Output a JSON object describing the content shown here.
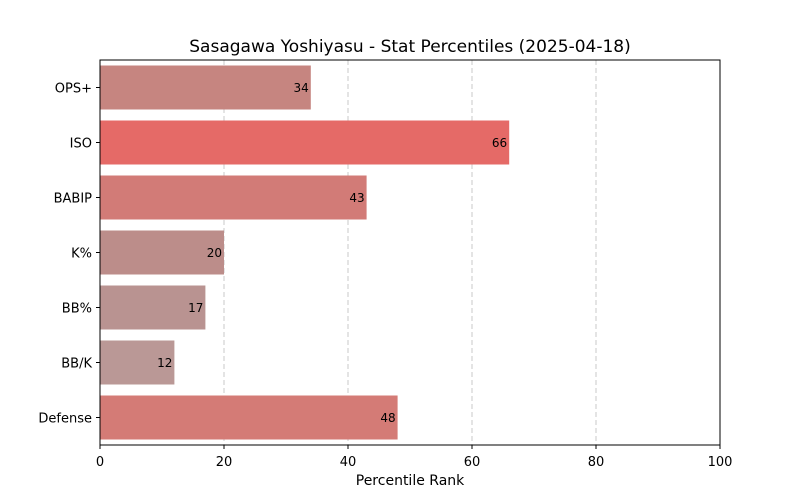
{
  "chart_data": {
    "type": "bar",
    "orientation": "horizontal",
    "title": "Sasagawa Yoshiyasu - Stat Percentiles (2025-04-18)",
    "xlabel": "Percentile Rank",
    "ylabel": "",
    "xlim": [
      0,
      100
    ],
    "xticks": [
      0,
      20,
      40,
      60,
      80,
      100
    ],
    "grid": "x-axis dashed",
    "categories": [
      "OPS+",
      "ISO",
      "BABIP",
      "K%",
      "BB%",
      "BB/K",
      "Defense"
    ],
    "values": [
      34,
      66,
      43,
      20,
      17,
      12,
      48
    ],
    "bar_colors": [
      "#c68580",
      "#e56a67",
      "#d27b77",
      "#bc8d8a",
      "#b99391",
      "#ba9896",
      "#d47b76"
    ]
  }
}
